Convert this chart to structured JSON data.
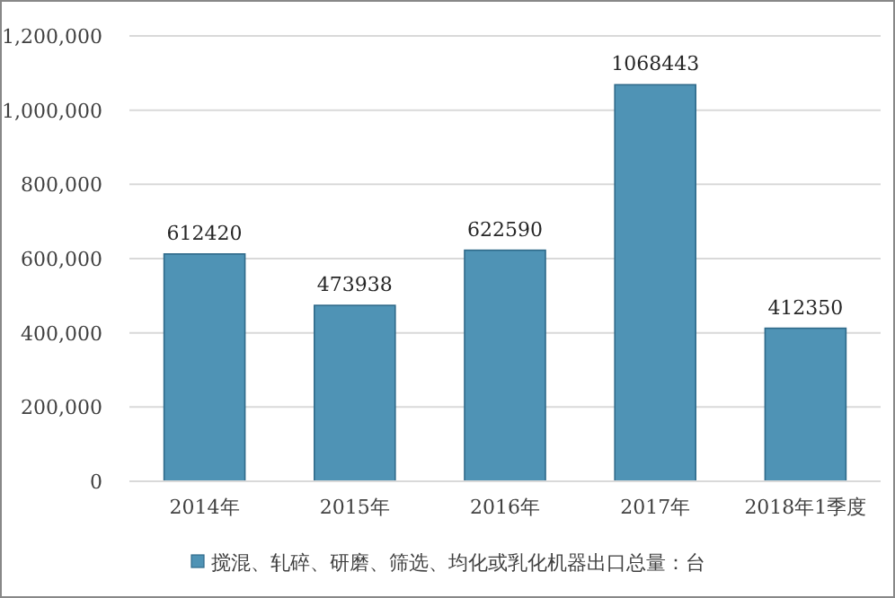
{
  "chart_data": {
    "type": "bar",
    "categories": [
      "2014年",
      "2015年",
      "2016年",
      "2017年",
      "2018年1季度"
    ],
    "series": [
      {
        "name": "搅混、轧碎、研磨、筛选、均化或乳化机器出口总量：台",
        "color": "#4f93b5",
        "values": [
          612420,
          473938,
          622590,
          1068443,
          412350
        ]
      }
    ],
    "ylim": [
      0,
      1200000
    ],
    "yticks": [
      0,
      {
        "value": 200000,
        "label": "200,000"
      },
      {
        "value": 400000,
        "label": "400,000"
      },
      {
        "value": 600000,
        "label": "600,000"
      },
      {
        "value": 800000,
        "label": "800,000"
      },
      {
        "value": 1000000,
        "label": "1,000,000"
      },
      {
        "value": 1200000,
        "label": "1,200,000"
      }
    ],
    "grid": "y",
    "legend": "bottom",
    "data_labels": true
  }
}
